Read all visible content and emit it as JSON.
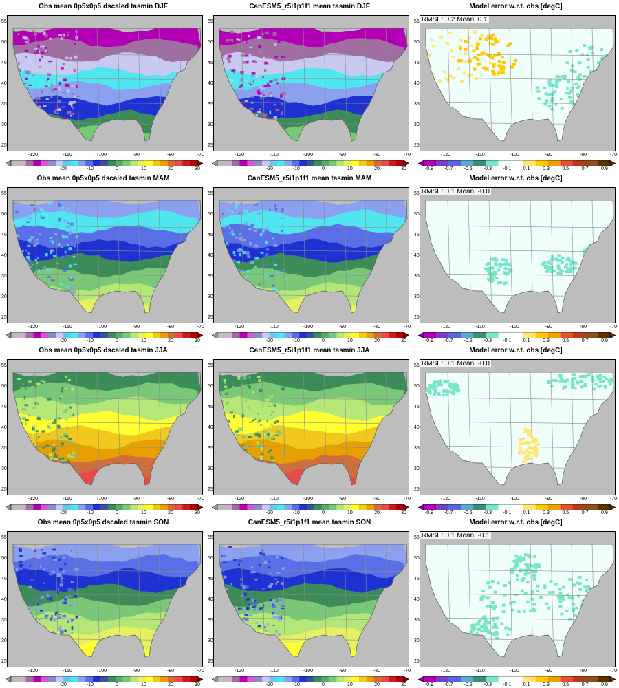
{
  "rows": [
    {
      "obs_title": "Obs mean 0p5x0p5 dscaled tasmin DJF",
      "model_title": "CanESM5_r5i1p1f1 mean tasmin DJF",
      "err_title": "Model error w.r.t. obs [degC]",
      "stats": "RMSE: 0.2  Mean: 0.1"
    },
    {
      "obs_title": "Obs mean 0p5x0p5 dscaled tasmin MAM",
      "model_title": "CanESM5_r5i1p1f1 mean tasmin MAM",
      "err_title": "Model error w.r.t. obs [degC]",
      "stats": "RMSE: 0.1  Mean: -0.0"
    },
    {
      "obs_title": "Obs mean 0p5x0p5 dscaled tasmin JJA",
      "model_title": "CanESM5_r5i1p1f1 mean tasmin JJA",
      "err_title": "Model error w.r.t. obs [degC]",
      "stats": "RMSE: 0.1  Mean: -0.0"
    },
    {
      "obs_title": "Obs mean 0p5x0p5 dscaled tasmin SON",
      "model_title": "CanESM5_r5i1p1f1 mean tasmin SON",
      "err_title": "Model error w.r.t. obs [degC]",
      "stats": "RMSE: 0.1  Mean: -0.1"
    }
  ],
  "lat_ticks": [
    "55",
    "50",
    "45",
    "40",
    "35",
    "30",
    "25"
  ],
  "lon_ticks": [
    "-120",
    "-110",
    "-100",
    "-90",
    "-80",
    "-70"
  ],
  "temp_cbar": {
    "labels": [
      "-20",
      "-10",
      "0",
      "10",
      "20",
      "30"
    ],
    "colors": [
      "#bdbdbd",
      "#c8b4c8",
      "#a06ea0",
      "#b400b4",
      "#d25ad2",
      "#8c8cc8",
      "#c8c8f0",
      "#64c8e6",
      "#50e6f0",
      "#8ca0f0",
      "#5a6ee6",
      "#1e32d2",
      "#3c50a0",
      "#3c8c5a",
      "#5aaa6e",
      "#78c878",
      "#b4e678",
      "#e6f064",
      "#ffff32",
      "#f0c81e",
      "#e6a000",
      "#d26e3c",
      "#e64b4b",
      "#c81e1e",
      "#b40000"
    ],
    "under": "#9a9a9a",
    "over": "#780000"
  },
  "err_cbar": {
    "labels": [
      "-0.9",
      "-0.7",
      "-0.5",
      "-0.3",
      "-0.1",
      "0.1",
      "0.3",
      "0.5",
      "0.7",
      "0.9"
    ],
    "colors": [
      "#b400b4",
      "#7840c8",
      "#5a64dc",
      "#5aaad2",
      "#3c8c78",
      "#78e6c8",
      "#f0fffa",
      "#ffffff",
      "#ffe678",
      "#ffc800",
      "#f0a000",
      "#e65032",
      "#b43c1e",
      "#8c5014",
      "#5a3200"
    ],
    "under": "#7800a0",
    "over": "#503010"
  },
  "zones": {
    "DJF": [
      "#b400b4",
      "#a06ea0",
      "#c8c8f0",
      "#50e6f0",
      "#8ca0f0",
      "#1e32d2",
      "#3c8c5a",
      "#78c878"
    ],
    "MAM": [
      "#8ca0f0",
      "#50e6f0",
      "#5a6ee6",
      "#1e32d2",
      "#3c8c5a",
      "#78c878",
      "#b4e678",
      "#e6f064"
    ],
    "JJA": [
      "#3c8c5a",
      "#78c878",
      "#b4e678",
      "#ffff32",
      "#f0c81e",
      "#e6a000",
      "#d26e3c",
      "#e64b4b"
    ],
    "SON": [
      "#8ca0f0",
      "#5a6ee6",
      "#1e32d2",
      "#3c8c5a",
      "#78c878",
      "#b4e678",
      "#e6f064",
      "#ffff32"
    ]
  },
  "error_colors": {
    "neutral": "#f0fffa",
    "positive": "#ffe678",
    "strong_positive": "#ffc800",
    "negative": "#78e6c8"
  }
}
